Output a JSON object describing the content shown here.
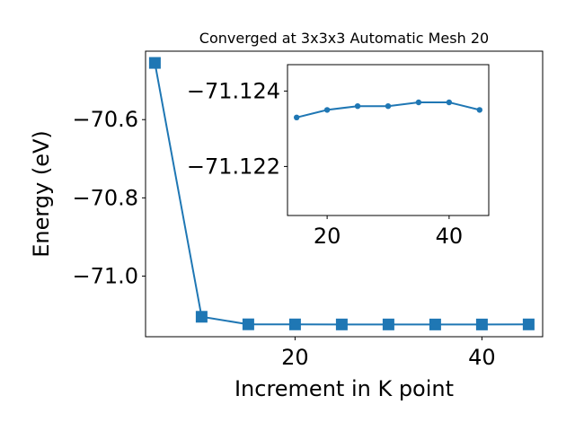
{
  "chart_data": [
    {
      "type": "line",
      "title": "Converged at 3x3x3 Automatic Mesh 20",
      "xlabel": "Increment in K point",
      "ylabel": "Energy (eV)",
      "x": [
        5,
        10,
        15,
        20,
        25,
        30,
        35,
        40,
        45
      ],
      "series": [
        {
          "values": [
            -70.455,
            -71.104,
            -71.1233,
            -71.1235,
            -71.1236,
            -71.1236,
            -71.1237,
            -71.1237,
            -71.1235
          ]
        }
      ],
      "xlim": [
        4,
        46.5
      ],
      "ylim": [
        -71.155,
        -70.425
      ],
      "xticks": [
        20,
        40
      ],
      "yticks": [
        -70.6,
        -70.8,
        -71.0
      ],
      "xtick_labels": [
        "20",
        "40"
      ],
      "ytick_labels": [
        "−70.6",
        "−70.8",
        "−71.0"
      ],
      "marker": "square",
      "color": "#1f77b4",
      "grid": false
    },
    {
      "type": "line",
      "title": "",
      "x": [
        15,
        20,
        25,
        30,
        35,
        40,
        45
      ],
      "series": [
        {
          "values": [
            -71.1233,
            -71.1235,
            -71.1236,
            -71.1236,
            -71.1237,
            -71.1237,
            -71.1235
          ]
        }
      ],
      "xlim": [
        13.5,
        46.5
      ],
      "ylim": [
        -71.1207,
        -71.1247
      ],
      "xticks": [
        20,
        40
      ],
      "yticks": [
        -71.124,
        -71.122
      ],
      "xtick_labels": [
        "20",
        "40"
      ],
      "ytick_labels": [
        "−71.124",
        "−71.122"
      ],
      "marker": "circle",
      "color": "#1f77b4",
      "grid": false
    }
  ]
}
